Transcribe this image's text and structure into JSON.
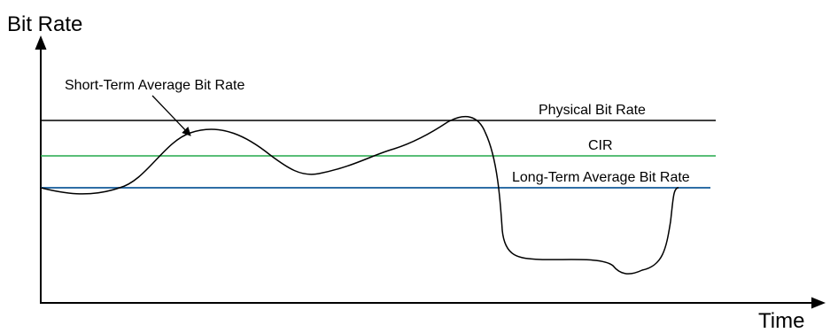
{
  "title": "",
  "axes": {
    "y_label": "Bit Rate",
    "x_label": "Time"
  },
  "lines": {
    "physical": {
      "label": "Physical Bit Rate",
      "color": "#000000"
    },
    "cir": {
      "label": "CIR",
      "color": "#22a84a"
    },
    "long_term": {
      "label": "Long-Term Average Bit Rate",
      "color": "#2e6ea6"
    }
  },
  "curve": {
    "label": "Short-Term Average Bit Rate",
    "color": "#000000"
  },
  "colors": {
    "axis": "#000000",
    "background": "#ffffff"
  }
}
